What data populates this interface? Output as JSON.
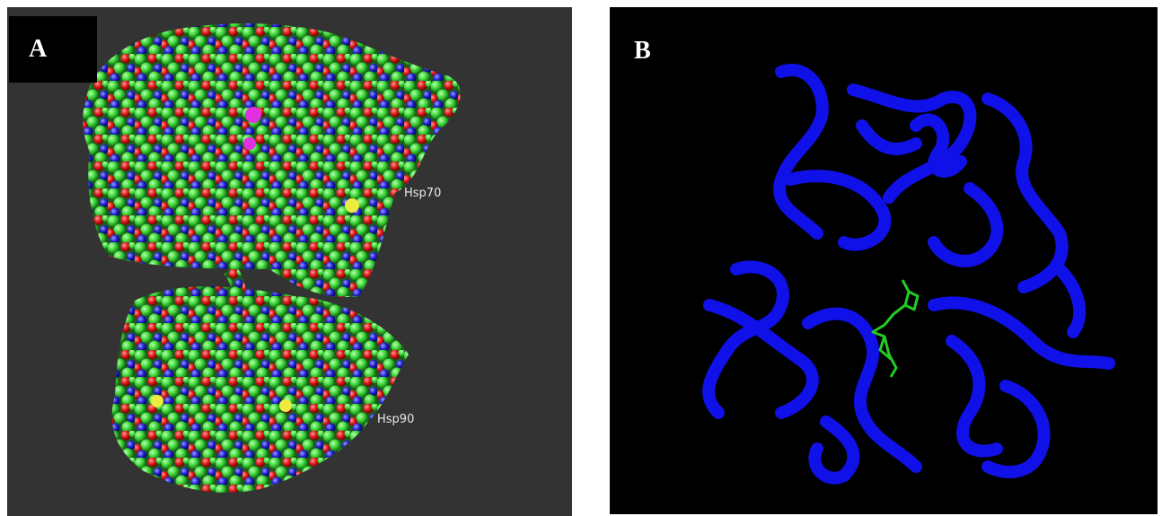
{
  "panels": [
    {
      "label": "A",
      "annotations": [
        "Hsp70",
        "Hsp90"
      ]
    },
    {
      "label": "B"
    }
  ]
}
